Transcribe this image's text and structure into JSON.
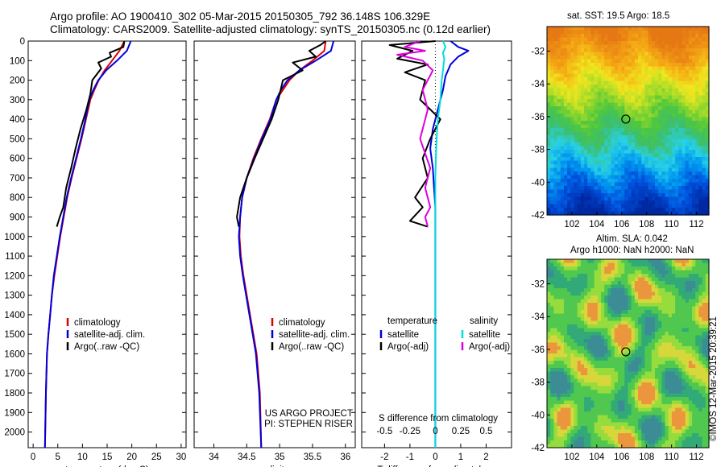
{
  "header": {
    "line1": "Argo profile: AO 1900410_302 05-Mar-2015 20150305_792 36.148S 106.329E",
    "line2": "Climatology: CARS2009. Satellite-adjusted climatology: synTS_20150305.nc (0.12d earlier)"
  },
  "colors": {
    "red": "#dd0000",
    "blue": "#0000dd",
    "black": "#000000",
    "cyan": "#00dddd",
    "magenta": "#dd00dd"
  },
  "chart_data": [
    {
      "type": "line",
      "panel": "temperature",
      "xlabel": "temperature (deg C)",
      "ylabel": "",
      "xlim": [
        -1,
        31
      ],
      "ylim": [
        2080,
        0
      ],
      "xticks": [
        "0",
        "5",
        "10",
        "15",
        "20",
        "25",
        "30"
      ],
      "yticks": [
        "0",
        "100",
        "200",
        "300",
        "400",
        "500",
        "600",
        "700",
        "800",
        "900",
        "1000",
        "1100",
        "1200",
        "1300",
        "1400",
        "1500",
        "1600",
        "1700",
        "1800",
        "1900",
        "2000"
      ],
      "legend": [
        "climatology",
        "satellite-adj. clim.",
        "Argo(..raw -QC)"
      ],
      "series": [
        {
          "name": "climatology",
          "color": "red",
          "x": [
            18.5,
            17.5,
            16,
            14.5,
            13.3,
            12.4,
            11.6,
            10.7,
            9.8,
            8.8,
            7.8,
            6.9,
            6.2,
            5.5,
            4.9,
            4.3,
            3.8,
            3.45,
            3.1,
            2.8,
            2.6,
            2.4
          ],
          "y": [
            0,
            50,
            100,
            150,
            200,
            250,
            300,
            400,
            500,
            600,
            700,
            800,
            900,
            1000,
            1100,
            1200,
            1300,
            1400,
            1500,
            1600,
            1800,
            2080
          ]
        },
        {
          "name": "satellite-adj. clim.",
          "color": "blue",
          "x": [
            19.8,
            19,
            17,
            14.8,
            13.2,
            12.2,
            11.4,
            10.6,
            9.7,
            8.7,
            7.7,
            6.8,
            6.1,
            5.4,
            4.8,
            4.2,
            3.8,
            3.45,
            3.1,
            2.8,
            2.6,
            2.4
          ],
          "y": [
            0,
            50,
            100,
            150,
            200,
            250,
            300,
            400,
            500,
            600,
            700,
            800,
            900,
            1000,
            1100,
            1200,
            1300,
            1400,
            1500,
            1600,
            1800,
            2080
          ]
        },
        {
          "name": "Argo(..raw -QC)",
          "color": "black",
          "x": [
            18.5,
            18.3,
            15.5,
            15.8,
            13.2,
            13.8,
            12,
            11.6,
            10.8,
            9.6,
            8.6,
            7.7,
            6.7,
            6.1,
            5.4,
            4.8
          ],
          "y": [
            0,
            30,
            60,
            80,
            110,
            140,
            200,
            270,
            350,
            450,
            550,
            650,
            750,
            850,
            900,
            950
          ]
        }
      ]
    },
    {
      "type": "line",
      "panel": "salinity",
      "xlabel": "salinity",
      "ylabel": "",
      "xlim": [
        33.7,
        36.15
      ],
      "ylim": [
        2080,
        0
      ],
      "xticks": [
        "34",
        "34.5",
        "35",
        "35.5",
        "36"
      ],
      "legend": [
        "climatology",
        "satellite-adj. clim.",
        "Argo(..raw -QC)"
      ],
      "annotations": [
        "US ARGO PROJECT",
        "PI: STEPHEN RISER"
      ],
      "series": [
        {
          "name": "climatology",
          "color": "red",
          "x": [
            35.7,
            35.68,
            35.5,
            35.3,
            35.15,
            35.05,
            34.95,
            34.85,
            34.72,
            34.6,
            34.5,
            34.43,
            34.4,
            34.39,
            34.41,
            34.45,
            34.5,
            34.55,
            34.6,
            34.65,
            34.7,
            34.72
          ],
          "y": [
            0,
            50,
            100,
            150,
            200,
            250,
            300,
            400,
            500,
            600,
            700,
            800,
            900,
            1000,
            1100,
            1200,
            1300,
            1400,
            1500,
            1600,
            1800,
            2080
          ]
        },
        {
          "name": "satellite-adj. clim.",
          "color": "blue",
          "x": [
            35.82,
            35.78,
            35.55,
            35.3,
            35.12,
            35.02,
            34.95,
            34.86,
            34.73,
            34.61,
            34.5,
            34.43,
            34.4,
            34.38,
            34.4,
            34.44,
            34.49,
            34.54,
            34.59,
            34.64,
            34.69,
            34.72
          ],
          "y": [
            0,
            50,
            100,
            150,
            200,
            250,
            300,
            400,
            500,
            600,
            700,
            800,
            900,
            1000,
            1100,
            1200,
            1300,
            1400,
            1500,
            1600,
            1800,
            2080
          ]
        },
        {
          "name": "Argo(..raw -QC)",
          "color": "black",
          "x": [
            35.7,
            35.62,
            35.45,
            35.55,
            35.2,
            35.35,
            35.05,
            34.98,
            34.88,
            34.75,
            34.62,
            34.5,
            34.4,
            34.35,
            34.38
          ],
          "y": [
            0,
            20,
            50,
            80,
            110,
            150,
            200,
            300,
            400,
            500,
            600,
            700,
            800,
            900,
            950
          ]
        }
      ]
    },
    {
      "type": "line",
      "panel": "difference",
      "xlabel": "T difference from climatology",
      "xlabel_top": "S difference from climatology",
      "xlim": [
        -2.9,
        3.0
      ],
      "ylim": [
        2080,
        0
      ],
      "xticks": [
        "-2",
        "-1",
        "0",
        "1",
        "2"
      ],
      "xticks_top": [
        "-0.5",
        "-0.25",
        "0",
        "0.25",
        "0.5"
      ],
      "legend_temperature_title": "temperature",
      "legend_salinity_title": "salinity",
      "legend": [
        "satellite",
        "Argo(-adj)",
        "satellite",
        "Argo(-adj)"
      ],
      "series": [
        {
          "name": "satellite",
          "color": "blue",
          "x": [
            0.6,
            0.9,
            1.3,
            0.9,
            0.6,
            0.4,
            0.3,
            0.1,
            -0.1,
            -0.2,
            -0.1,
            -0.05,
            0,
            0,
            0,
            0,
            0,
            0,
            0
          ],
          "y": [
            0,
            30,
            50,
            80,
            120,
            180,
            250,
            350,
            450,
            550,
            650,
            750,
            850,
            950,
            1100,
            1300,
            1500,
            1800,
            2080
          ]
        },
        {
          "name": "Argo(-adj)",
          "color": "black",
          "x": [
            0,
            -1.8,
            -0.9,
            -1.5,
            -0.3,
            -1.2,
            -0.4,
            -0.6,
            0.2,
            -0.2,
            -0.5,
            -0.3,
            -0.8,
            -0.5,
            -1,
            -0.3
          ],
          "y": [
            0,
            20,
            50,
            90,
            120,
            160,
            200,
            300,
            400,
            500,
            600,
            700,
            800,
            850,
            920,
            950
          ]
        },
        {
          "name": "satellite",
          "color": "cyan",
          "x": [
            0.3,
            0.4,
            0.3,
            0.35,
            0.3,
            0.25,
            0.2,
            0.1,
            0.05,
            0.02,
            0,
            0,
            0,
            0,
            0,
            0
          ],
          "y": [
            0,
            30,
            60,
            90,
            150,
            200,
            300,
            400,
            500,
            600,
            700,
            800,
            1000,
            1400,
            1800,
            2080
          ]
        },
        {
          "name": "Argo(-adj)",
          "color": "magenta",
          "x": [
            -0.6,
            -1.2,
            -0.4,
            -1.5,
            -0.5,
            -0.1,
            -0.5,
            -0.3,
            -0.6,
            -0.2,
            -0.4,
            -0.2,
            -0.4,
            -0.3
          ],
          "y": [
            0,
            30,
            50,
            70,
            100,
            150,
            250,
            350,
            500,
            650,
            750,
            850,
            900,
            950
          ]
        }
      ]
    },
    {
      "type": "heatmap",
      "panel": "sst-map",
      "title": "sat. SST: 19.5 Argo: 18.5",
      "xlim": [
        100,
        113
      ],
      "ylim": [
        -42,
        -30.5
      ],
      "xticks": [
        "102",
        "104",
        "106",
        "108",
        "110",
        "112"
      ],
      "yticks": [
        "-32",
        "-34",
        "-36",
        "-38",
        "-40",
        "-42"
      ],
      "marker": {
        "lon": 106.329,
        "lat": -36.148
      }
    },
    {
      "type": "heatmap",
      "panel": "sla-map",
      "title1": "Altim. SLA: 0.042",
      "title2": "Argo h1000: NaN h2000: NaN",
      "xlim": [
        100,
        113
      ],
      "ylim": [
        -42,
        -30.5
      ],
      "xticks": [
        "102",
        "104",
        "106",
        "108",
        "110",
        "112"
      ],
      "yticks": [
        "-32",
        "-34",
        "-36",
        "-38",
        "-40",
        "-42"
      ],
      "marker": {
        "lon": 106.329,
        "lat": -36.148
      }
    }
  ],
  "footer": {
    "stamp": "©IMOS 12-Mar-2015 20:39:21"
  }
}
